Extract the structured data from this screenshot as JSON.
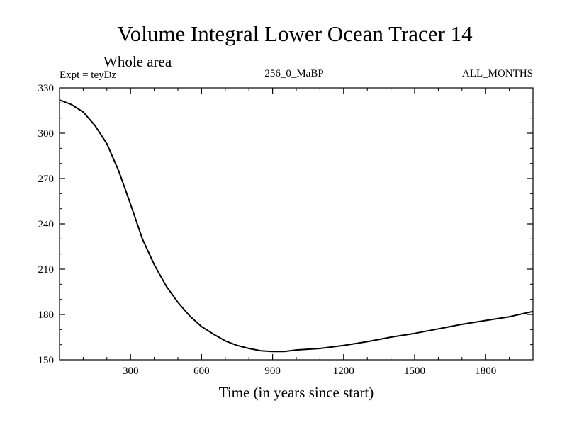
{
  "chart_data": {
    "type": "line",
    "title": "Volume Integral Lower Ocean Tracer 14",
    "subtitle": "Whole area",
    "experiment_label": "Expt = teyDz",
    "run_label": "256_0_MaBP",
    "period_label": "ALL_MONTHS",
    "xlabel": "Time (in years since start)",
    "ylabel": "",
    "xlim": [
      0,
      2000
    ],
    "ylim": [
      150,
      330
    ],
    "xticks": [
      300,
      600,
      900,
      1200,
      1500,
      1800
    ],
    "yticks": [
      150,
      180,
      210,
      240,
      270,
      300,
      330
    ],
    "grid": false,
    "series": [
      {
        "name": "Tracer 14",
        "color": "#000000",
        "x": [
          0,
          50,
          100,
          150,
          200,
          250,
          300,
          350,
          400,
          450,
          500,
          550,
          600,
          650,
          700,
          750,
          800,
          850,
          900,
          950,
          1000,
          1100,
          1200,
          1300,
          1400,
          1500,
          1600,
          1700,
          1800,
          1900,
          2000
        ],
        "y": [
          322,
          319,
          314,
          305,
          293,
          275,
          253,
          230,
          213,
          199,
          188,
          179,
          172,
          167,
          162.5,
          159.5,
          157.5,
          156,
          155.5,
          155.5,
          156.5,
          157.5,
          159.5,
          162,
          165,
          167.5,
          170.5,
          173.5,
          176,
          178.5,
          182
        ]
      }
    ]
  }
}
